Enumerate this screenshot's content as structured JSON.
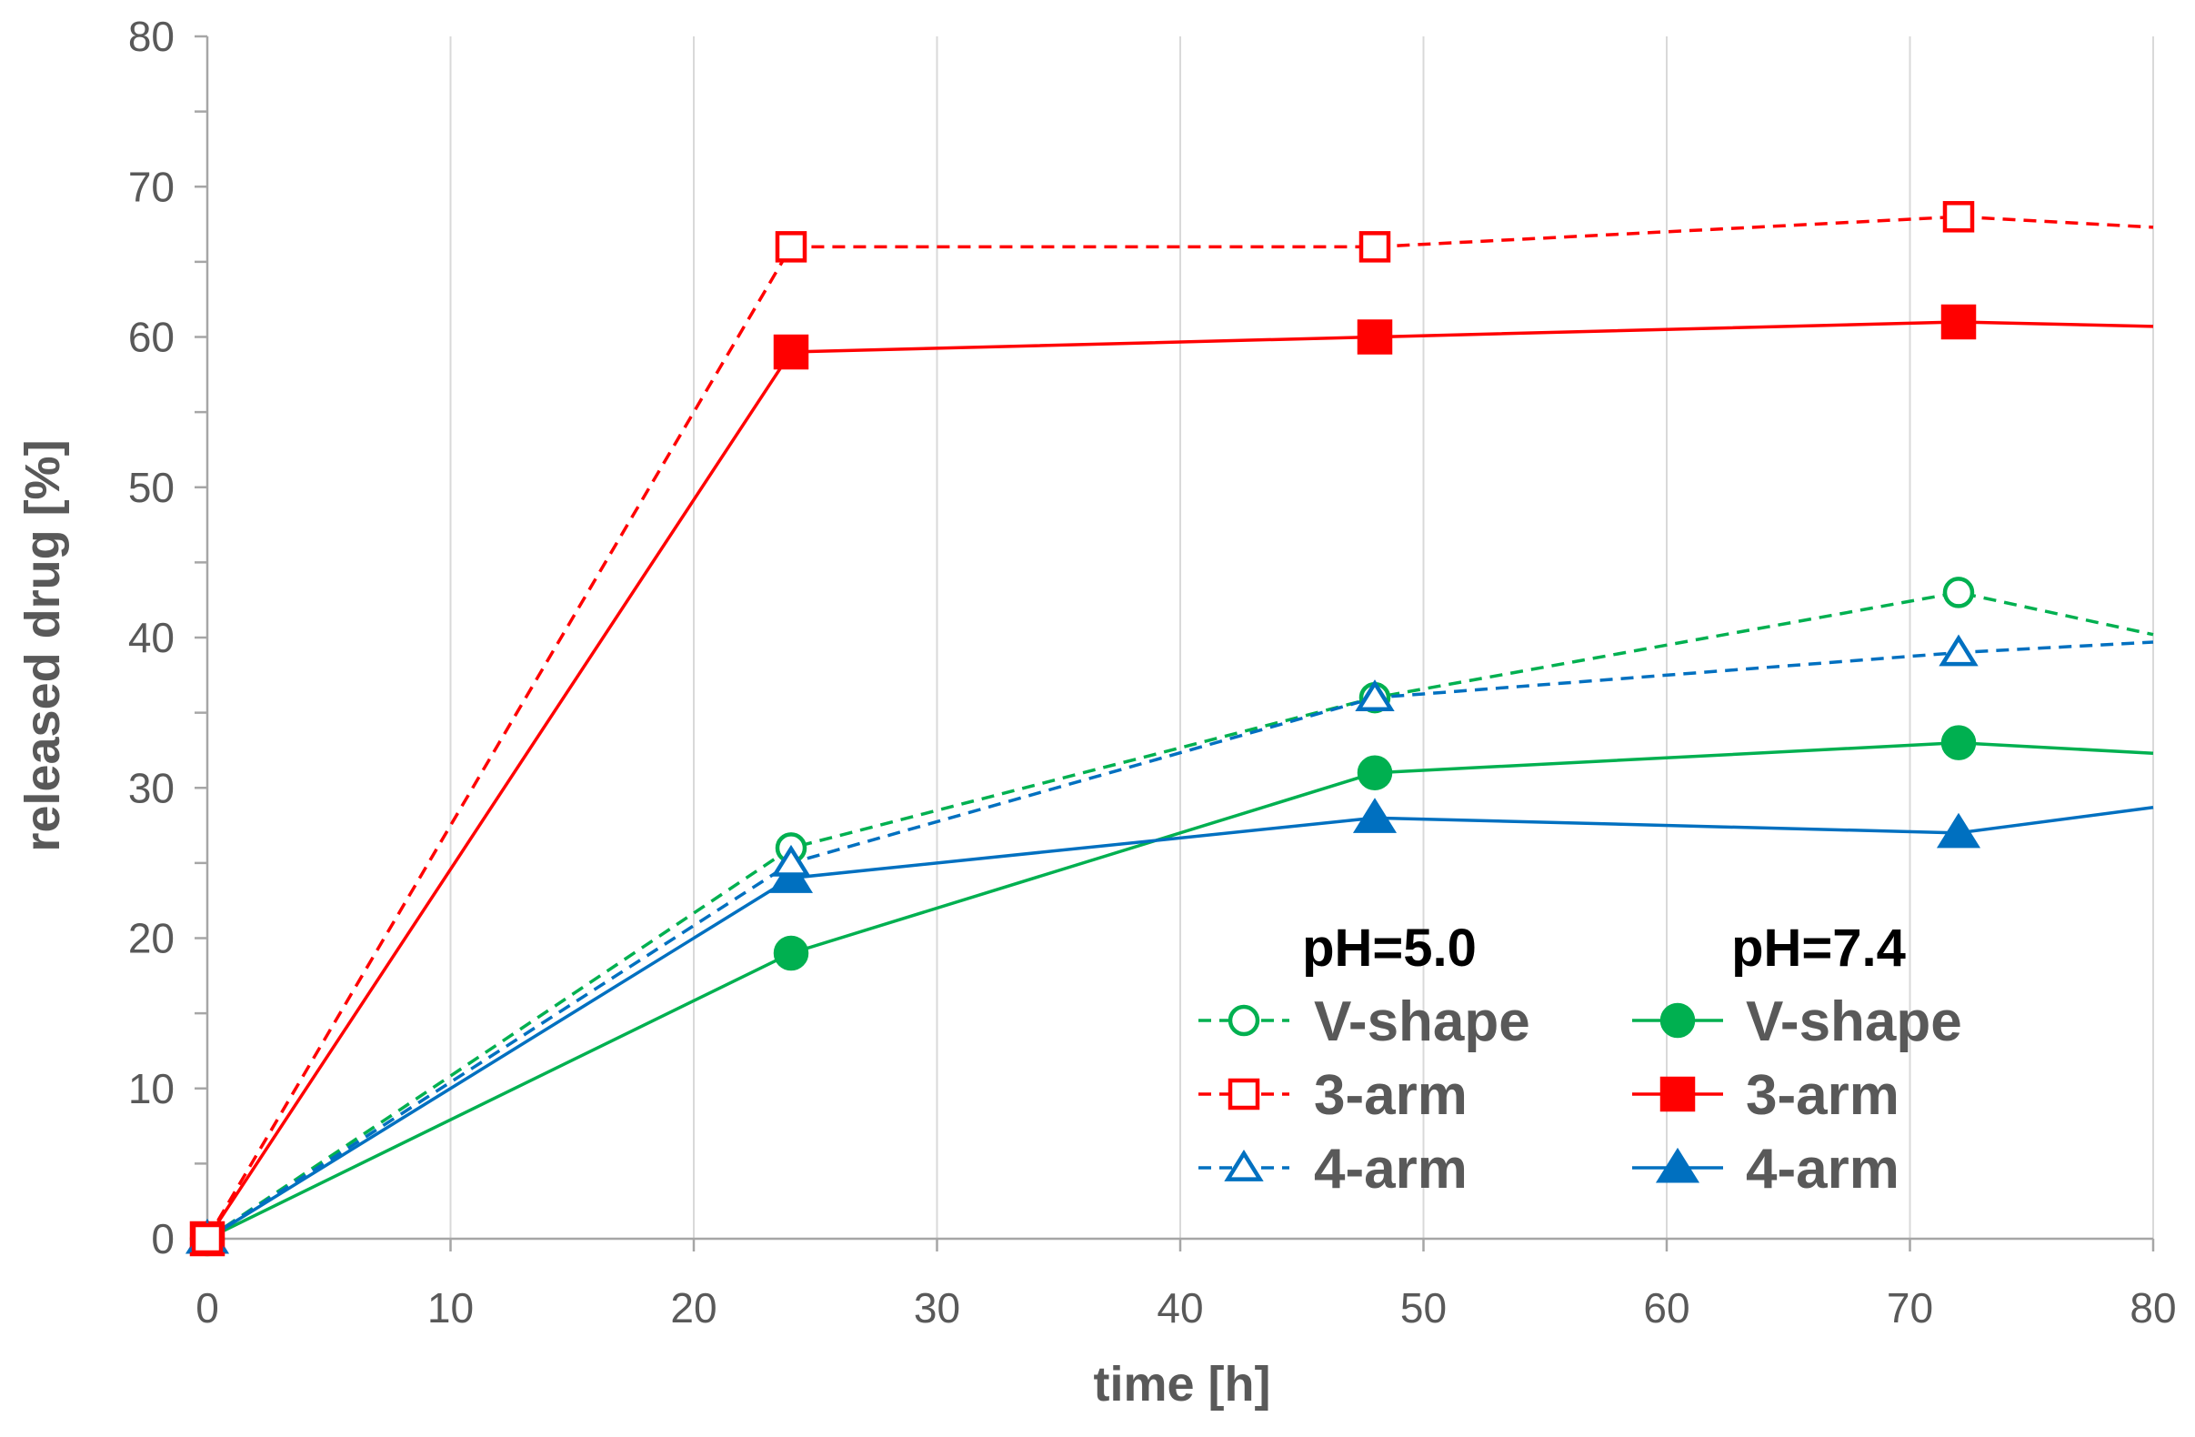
{
  "chart_data": {
    "type": "line",
    "title": "",
    "xlabel": "time [h]",
    "ylabel": "released drug [%]",
    "xlim": [
      0,
      80
    ],
    "ylim": [
      0,
      80
    ],
    "xticks": [
      0,
      10,
      20,
      30,
      40,
      50,
      60,
      70,
      80
    ],
    "yticks": [
      0,
      10,
      20,
      30,
      40,
      50,
      60,
      70,
      80
    ],
    "x_tick_labels": [
      "0",
      "10",
      "20",
      "30",
      "40",
      "50",
      "60",
      "70",
      "80"
    ],
    "y_tick_labels": [
      "0",
      "10",
      "20",
      "30",
      "40",
      "50",
      "60",
      "70",
      "80"
    ],
    "grid": "vertical",
    "legend": {
      "placement": "bottom-right",
      "group_headers": [
        "pH=5.0",
        "pH=7.4"
      ]
    },
    "colors": {
      "green": "#00b050",
      "red": "#ff0000",
      "blue": "#0070c0",
      "axis": "#a6a6a6",
      "grid": "#d9d9d9"
    },
    "series": [
      {
        "name": "V-shape",
        "group": "pH=5.0",
        "color": "#00b050",
        "dash": "dashed",
        "marker": "circle",
        "filled": false,
        "x": [
          0,
          24,
          48,
          72,
          80
        ],
        "values": [
          0,
          26,
          36,
          43,
          40.2
        ]
      },
      {
        "name": "3-arm",
        "group": "pH=5.0",
        "color": "#ff0000",
        "dash": "dashed",
        "marker": "square",
        "filled": false,
        "x": [
          0,
          24,
          48,
          72,
          80
        ],
        "values": [
          0,
          66,
          66,
          68,
          67.3
        ]
      },
      {
        "name": "4-arm",
        "group": "pH=5.0",
        "color": "#0070c0",
        "dash": "dashed",
        "marker": "triangle",
        "filled": false,
        "x": [
          0,
          24,
          48,
          72,
          80
        ],
        "values": [
          0,
          25,
          36,
          39,
          39.7
        ]
      },
      {
        "name": "V-shape",
        "group": "pH=7.4",
        "color": "#00b050",
        "dash": "solid",
        "marker": "circle",
        "filled": true,
        "x": [
          0,
          24,
          48,
          72,
          80
        ],
        "values": [
          0,
          19,
          31,
          33,
          32.3
        ]
      },
      {
        "name": "3-arm",
        "group": "pH=7.4",
        "color": "#ff0000",
        "dash": "solid",
        "marker": "square",
        "filled": true,
        "x": [
          0,
          24,
          48,
          72,
          80
        ],
        "values": [
          0,
          59,
          60,
          61,
          60.7
        ]
      },
      {
        "name": "4-arm",
        "group": "pH=7.4",
        "color": "#0070c0",
        "dash": "solid",
        "marker": "triangle",
        "filled": true,
        "x": [
          0,
          24,
          48,
          72,
          80
        ],
        "values": [
          0,
          24,
          28,
          27,
          28.7
        ]
      }
    ]
  }
}
